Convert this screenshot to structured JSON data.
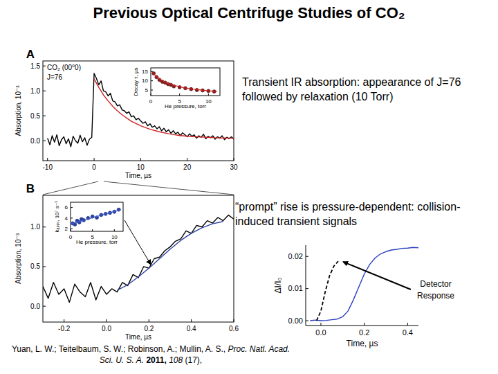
{
  "title": "Previous Optical Centrifuge Studies of CO₂",
  "notes": [
    "Transient IR absorption: appearance of J=76 followed by relaxation (10 Torr)",
    "“prompt” rise is pressure-dependent: collision-induced transient signals"
  ],
  "citation": {
    "authors": "Yuan, L. W.; Teitelbaum, S. W.; Robinson, A.; Mullin, A. S.,",
    "journal": "Proc. Natl. Acad. Sci. U. S. A.",
    "year": "2011,",
    "volume": "108",
    "issue": "(17),"
  },
  "chart_data": [
    {
      "type": "line",
      "annotations": [
        "A",
        "CO₂ (00⁰0)",
        "J=76"
      ],
      "x_label": "Time, µs",
      "y_label": "Absorption, 10⁻³",
      "xlim": [
        -11,
        30
      ],
      "xticks": [
        -10,
        {
          "value": 0,
          "label": "0"
        },
        10,
        20,
        30
      ],
      "ylim": [
        -0.4,
        1.6
      ],
      "yticks": [
        {
          "value": 0,
          "label": "0.0"
        },
        0.5,
        {
          "value": 1,
          "label": "1.0"
        },
        1.5
      ],
      "series": [
        {
          "color": "#000000",
          "x": [
            -10,
            -9.5,
            -9,
            -8.5,
            -8,
            -7.5,
            -7,
            -6.5,
            -6,
            -5.5,
            -5,
            -4.5,
            -4,
            -3.5,
            -3,
            -2.5,
            -2,
            -1.5,
            -1,
            -0.5,
            0,
            0.5,
            1,
            1.5,
            2,
            2.5,
            3,
            3.5,
            4,
            4.5,
            5,
            5.5,
            6,
            6.5,
            7,
            7.5,
            8,
            8.5,
            9,
            9.5,
            10,
            10.5,
            11,
            11.5,
            12,
            12.5,
            13,
            13.5,
            14,
            14.5,
            15,
            15.5,
            16,
            16.5,
            17,
            17.5,
            18,
            18.5,
            19,
            19.5,
            20,
            20.5,
            21,
            21.5,
            22,
            22.5,
            23,
            23.5,
            24,
            24.5,
            25,
            25.5,
            26,
            26.5,
            27,
            27.5,
            28,
            28.5,
            29,
            29.5,
            30
          ],
          "values": [
            0.05,
            -0.08,
            0.1,
            -0.03,
            0.12,
            -0.1,
            0.02,
            0.08,
            -0.06,
            0.04,
            -0.12,
            0.09,
            0.0,
            -0.05,
            0.11,
            -0.02,
            0.06,
            -0.09,
            0.03,
            0.07,
            1.35,
            1.25,
            1.12,
            1.2,
            1.0,
            0.98,
            0.9,
            0.95,
            0.8,
            0.78,
            0.7,
            0.72,
            0.62,
            0.6,
            0.55,
            0.58,
            0.48,
            0.5,
            0.42,
            0.45,
            0.4,
            0.35,
            0.38,
            0.3,
            0.34,
            0.27,
            0.3,
            0.24,
            0.28,
            0.2,
            0.25,
            0.18,
            0.22,
            0.15,
            0.2,
            0.14,
            0.17,
            0.1,
            0.16,
            0.12,
            0.08,
            0.14,
            0.09,
            0.12,
            0.05,
            0.1,
            0.07,
            0.13,
            0.04,
            0.09,
            0.06,
            0.1,
            0.03,
            0.08,
            0.05,
            0.1,
            0.02,
            0.07,
            0.04,
            0.08,
            0.03
          ]
        },
        {
          "color": "#cc2222",
          "x": [
            0,
            1,
            2,
            3,
            4,
            5,
            6,
            8,
            10,
            12,
            14,
            16,
            18,
            20,
            22,
            24,
            26,
            28,
            30
          ],
          "values": [
            1.24,
            1.07,
            0.92,
            0.8,
            0.69,
            0.6,
            0.52,
            0.39,
            0.3,
            0.23,
            0.18,
            0.14,
            0.11,
            0.09,
            0.08,
            0.07,
            0.06,
            0.055,
            0.05
          ]
        }
      ]
    },
    {
      "type": "scatter",
      "x_label": "He pressure, torr",
      "y_label": "Decay τ, µs",
      "xlim": [
        0,
        12
      ],
      "xticks": [
        0,
        5,
        10
      ],
      "ylim": [
        2,
        17
      ],
      "yticks": [
        5,
        10,
        15
      ],
      "series": [
        {
          "type": "scatter",
          "marker": "circle",
          "color": "#7a1f1f",
          "x": [
            0.5,
            1,
            1.5,
            2,
            2.5,
            3,
            3.5,
            4,
            5,
            6,
            7,
            8,
            9,
            10,
            11
          ],
          "values": [
            14,
            12,
            10.5,
            9.5,
            9,
            8.2,
            7.8,
            7,
            6.5,
            6,
            5.5,
            5,
            4.8,
            4.5,
            4.2
          ]
        },
        {
          "type": "line",
          "color": "#cc2222",
          "x": [
            0.3,
            1,
            2,
            3,
            4,
            6,
            8,
            10,
            11.5
          ],
          "values": [
            14.5,
            12.2,
            10.1,
            8.6,
            7.5,
            6.1,
            5.2,
            4.6,
            4.3
          ]
        }
      ]
    },
    {
      "type": "line",
      "annotations": [
        "B"
      ],
      "x_label": "Time, µs",
      "y_label": "Absorption, 10⁻³",
      "xlim": [
        -0.3,
        0.6
      ],
      "xticks": [
        -0.2,
        {
          "value": 0,
          "label": "0.0"
        },
        0.2,
        0.4,
        0.6
      ],
      "ylim": [
        -0.2,
        1.4
      ],
      "yticks": [
        {
          "value": 0,
          "label": "0.0"
        },
        0.5,
        {
          "value": 1,
          "label": "1.0"
        }
      ],
      "series": [
        {
          "color": "#000000",
          "x": [
            -0.3,
            -0.275,
            -0.25,
            -0.225,
            -0.2,
            -0.175,
            -0.15,
            -0.125,
            -0.1,
            -0.075,
            -0.05,
            -0.025,
            0,
            0.025,
            0.05,
            0.075,
            0.1,
            0.125,
            0.15,
            0.175,
            0.2,
            0.225,
            0.25,
            0.275,
            0.3,
            0.325,
            0.35,
            0.375,
            0.4,
            0.425,
            0.45,
            0.475,
            0.5,
            0.525,
            0.55,
            0.575,
            0.6
          ],
          "values": [
            0.25,
            0.1,
            0.3,
            0.15,
            0.22,
            0.05,
            0.28,
            0.18,
            0.12,
            0.3,
            0.08,
            0.25,
            0.15,
            0.22,
            0.18,
            0.3,
            0.26,
            0.4,
            0.36,
            0.5,
            0.48,
            0.6,
            0.62,
            0.7,
            0.75,
            0.82,
            0.85,
            0.95,
            0.92,
            1.02,
            1.0,
            1.08,
            1.05,
            1.12,
            1.08,
            1.15,
            1.1
          ]
        },
        {
          "color": "#2a3f9f",
          "x": [
            0.05,
            0.1,
            0.15,
            0.2,
            0.25,
            0.3,
            0.35,
            0.4,
            0.45,
            0.5,
            0.55
          ],
          "values": [
            0.2,
            0.27,
            0.37,
            0.48,
            0.6,
            0.72,
            0.83,
            0.92,
            0.99,
            1.04,
            1.07
          ]
        }
      ]
    },
    {
      "type": "scatter",
      "x_label": "He pressure, torr",
      "y_label": "kₐₚₚᵣ, 10⁷ s⁻¹",
      "xlim": [
        0,
        12
      ],
      "xticks": [
        0,
        5,
        10
      ],
      "ylim": [
        1.5,
        7
      ],
      "yticks": [
        2,
        4,
        6
      ],
      "series": [
        {
          "type": "scatter",
          "marker": "circle",
          "color": "#2a3f9f",
          "x": [
            0.5,
            1,
            1.5,
            2,
            2.5,
            3,
            4,
            5,
            6,
            7,
            8,
            9,
            10,
            11
          ],
          "values": [
            3.0,
            2.8,
            3.5,
            3.2,
            3.8,
            3.6,
            4.0,
            4.3,
            4.1,
            4.6,
            4.8,
            5.0,
            5.2,
            5.6
          ]
        },
        {
          "type": "line",
          "color": "#4060c0",
          "x": [
            0,
            11.5
          ],
          "values": [
            2.9,
            5.6
          ]
        }
      ]
    },
    {
      "type": "line",
      "annotations": [
        "Detector Response"
      ],
      "x_label": "Time, µs",
      "y_label": "ΔI/I₀",
      "xlim": [
        -0.07,
        0.45
      ],
      "xticks": [
        {
          "value": 0,
          "label": "0.0"
        },
        0.2,
        0.4
      ],
      "ylim": [
        -0.0015,
        0.0235
      ],
      "yticks": [
        {
          "value": 0,
          "label": "0.00"
        },
        0.01,
        0.02
      ],
      "series": [
        {
          "color": "#2b3fbf",
          "x": [
            -0.05,
            -0.025,
            0,
            0.025,
            0.05,
            0.075,
            0.1,
            0.125,
            0.15,
            0.175,
            0.2,
            0.225,
            0.25,
            0.275,
            0.3,
            0.325,
            0.35,
            0.375,
            0.4,
            0.425,
            0.45
          ],
          "values": [
            0,
            0.0002,
            0,
            0.0001,
            0.0003,
            0.0005,
            0.0012,
            0.003,
            0.0065,
            0.0105,
            0.0145,
            0.0175,
            0.0195,
            0.0208,
            0.0215,
            0.022,
            0.0222,
            0.0225,
            0.0226,
            0.0228,
            0.0227
          ]
        },
        {
          "color": "#000000",
          "line_style": "dashed",
          "x": [
            -0.02,
            0,
            0.02,
            0.04,
            0.06,
            0.08
          ],
          "values": [
            0,
            0.003,
            0.009,
            0.014,
            0.017,
            0.0185
          ]
        }
      ]
    }
  ]
}
